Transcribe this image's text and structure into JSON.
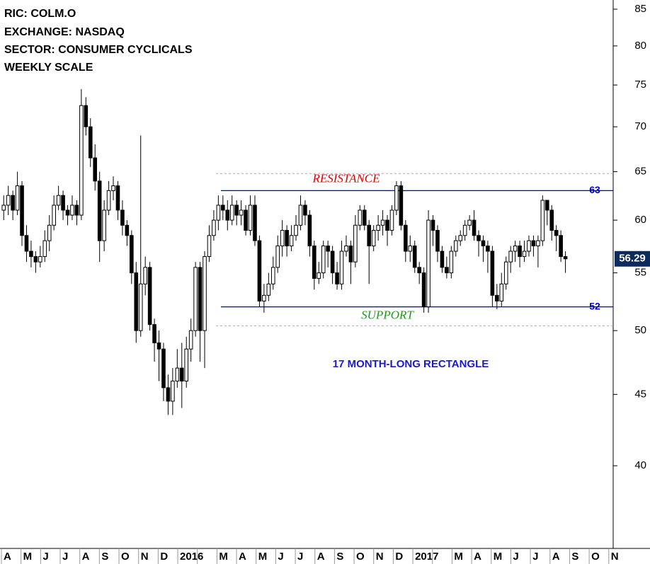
{
  "chart_data": {
    "type": "candlestick",
    "info": [
      "RIC: COLM.O",
      "EXCHANGE: NASDAQ",
      "SECTOR: CONSUMER CYCLICALS",
      "WEEKLY SCALE"
    ],
    "annotation": "17 MONTH-LONG RECTANGLE",
    "months": [
      "A",
      "M",
      "J",
      "J",
      "A",
      "S",
      "O",
      "N",
      "D",
      "2016",
      null,
      "M",
      "A",
      "M",
      "J",
      "J",
      "A",
      "S",
      "O",
      "N",
      "D",
      "2017",
      null,
      "M",
      "A",
      "M",
      "J",
      "J",
      "A",
      "S",
      "O",
      "N"
    ],
    "open": [
      61,
      61.5,
      62.5,
      61,
      63.5,
      58.5,
      57,
      56.5,
      56,
      56.5,
      58,
      59.5,
      61.5,
      62.5,
      61,
      60.5,
      61.5,
      60.5,
      72.5,
      70,
      66.5,
      64,
      58,
      61,
      63,
      63.5,
      61,
      59.5,
      58.5,
      55,
      50,
      54,
      55.5,
      50.5,
      49,
      48.5,
      45.5,
      44.5,
      46,
      47,
      46,
      48.5,
      50,
      55.5,
      50,
      56.5,
      58.5,
      60,
      61.5,
      61,
      60,
      61.5,
      60.5,
      61,
      59,
      61.5,
      58,
      52.5,
      53,
      54,
      55.5,
      57.5,
      59,
      57.5,
      58.5,
      59.5,
      61.5,
      60.5,
      57.5,
      54.5,
      55,
      57.5,
      57,
      55,
      54,
      57,
      57.5,
      56,
      59.5,
      61,
      59.5,
      57.5,
      59,
      59.5,
      60,
      59,
      61,
      63.5,
      59.5,
      57,
      57.5,
      55.5,
      55,
      52,
      60,
      59,
      57,
      55.5,
      55,
      57,
      58,
      58.5,
      59.5,
      60,
      58.5,
      58,
      57.5,
      57,
      53,
      52.5,
      54,
      56,
      57,
      57.5,
      56.5,
      57,
      58,
      57.5,
      58,
      62,
      61,
      59,
      58.5,
      56.5
    ],
    "high": [
      62.5,
      63.5,
      63,
      65,
      64,
      59.5,
      58,
      57,
      57.5,
      59,
      60.5,
      62.5,
      63.5,
      63,
      61.5,
      62.5,
      62,
      74.5,
      73.5,
      71,
      68,
      65,
      62,
      64,
      64.5,
      64,
      62,
      60,
      59,
      56,
      69,
      56.5,
      56,
      51,
      50,
      49,
      46.5,
      47,
      48.5,
      49,
      49.5,
      51,
      56,
      56,
      57,
      59.5,
      61,
      62.5,
      62.5,
      62,
      62.5,
      62,
      62,
      61.5,
      62.5,
      62.5,
      58.5,
      54,
      55,
      56.5,
      58.5,
      60,
      59.5,
      59.5,
      60.5,
      62.5,
      62,
      61,
      58,
      56,
      58,
      58,
      57.5,
      56,
      58,
      58.5,
      58,
      60.5,
      61.5,
      61.5,
      60,
      59.5,
      60.5,
      61,
      60.5,
      61.5,
      64,
      64,
      60,
      58.5,
      58,
      56,
      55.5,
      61,
      60.5,
      59.5,
      57.5,
      56.5,
      57.5,
      58.5,
      59,
      60,
      60.5,
      61,
      59,
      58.5,
      58,
      57.5,
      54,
      55,
      56.5,
      57.5,
      58,
      58,
      58,
      58.5,
      58.5,
      58.5,
      62.5,
      62,
      61.5,
      59.5,
      59,
      57
    ],
    "low": [
      60,
      60.5,
      60,
      60.5,
      57.5,
      56,
      55.5,
      55,
      55.5,
      56,
      57,
      59,
      61,
      60,
      59.5,
      60,
      59.5,
      60,
      69,
      65.5,
      63,
      56,
      57,
      60.5,
      62,
      60,
      58.5,
      57.5,
      54,
      49,
      49.5,
      53,
      50,
      47.5,
      46,
      44.5,
      43.5,
      43.5,
      45.5,
      44,
      45.5,
      47.5,
      49.5,
      47.5,
      47,
      56,
      58,
      59,
      60,
      59,
      59.5,
      59.5,
      59.5,
      58.5,
      58.5,
      57.5,
      52,
      51.5,
      52.5,
      53.5,
      55,
      56.5,
      56.5,
      57,
      58,
      59,
      59.5,
      56.5,
      53.5,
      54,
      54.5,
      55.5,
      54,
      53.5,
      53.5,
      56.5,
      54,
      55.5,
      59,
      59,
      54,
      57,
      58,
      58.5,
      57.5,
      58.5,
      60.5,
      59,
      56,
      56,
      55,
      54,
      51.5,
      51.5,
      57.5,
      56,
      55,
      54.5,
      54.5,
      56.5,
      57.5,
      58,
      59,
      58,
      56.5,
      56,
      55,
      52,
      51.8,
      52,
      53.5,
      55,
      56,
      55.5,
      56,
      56.5,
      56.5,
      55.5,
      57.5,
      59.5,
      58,
      57,
      56,
      55
    ],
    "close": [
      61.5,
      62.5,
      61,
      63.5,
      58.5,
      57,
      56.5,
      56,
      56.5,
      58,
      59.5,
      61.5,
      62.5,
      61,
      60.5,
      61.5,
      60.5,
      72.5,
      70,
      66.5,
      64,
      58,
      61,
      63,
      63.5,
      61,
      59.5,
      58.5,
      55,
      50,
      54,
      55.5,
      50.5,
      49,
      48.5,
      45.5,
      44.5,
      46,
      47,
      46,
      48.5,
      50,
      55.5,
      50,
      56.5,
      58.5,
      60,
      61.5,
      61,
      60,
      61.5,
      60.5,
      61,
      59,
      61.5,
      58,
      52.5,
      53,
      54,
      55.5,
      57.5,
      59,
      57.5,
      58.5,
      59.5,
      61.5,
      60.5,
      57.5,
      54.5,
      55,
      57.5,
      57,
      55,
      54,
      57,
      57.5,
      56,
      59.5,
      61,
      59.5,
      57.5,
      59,
      59.5,
      60,
      59,
      61,
      63.5,
      59.5,
      57,
      57.5,
      55.5,
      55,
      52,
      60,
      59,
      57,
      55.5,
      55,
      57,
      58,
      58.5,
      59.5,
      60,
      58.5,
      58,
      57.5,
      57,
      53,
      52.5,
      54,
      56,
      57,
      57.5,
      56.5,
      57,
      58,
      57.5,
      58,
      62,
      61,
      59,
      58.5,
      56.5,
      56.29
    ],
    "up_color": "#ffffff",
    "down_color": "#000000",
    "levels": [
      {
        "value": 63,
        "label": "RESISTANCE",
        "color": "#0000cc",
        "label_color": "#e00000"
      },
      {
        "value": 52,
        "label": "SUPPORT",
        "color": "#0000cc",
        "label_color": "#1a9a1a"
      }
    ],
    "dashed_levels": [
      64.8,
      50.4
    ],
    "ylim": [
      35.1,
      86.3
    ],
    "yticks": [
      40,
      45,
      50,
      55,
      60,
      65,
      70,
      75,
      80,
      85
    ],
    "log_scale": true
  }
}
